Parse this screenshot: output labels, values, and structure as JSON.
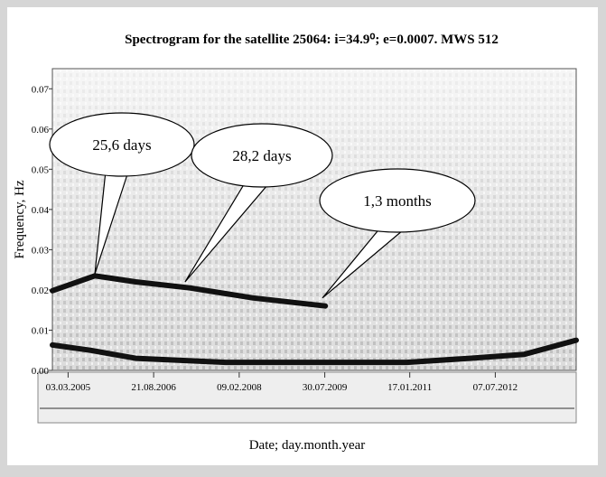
{
  "chart_data": {
    "type": "spectrogram",
    "title": "Spectrogram for the satellite 25064: i=34.9⁰; e=0.0007. MWS 512",
    "ylabel": "Frequency, Hz",
    "xlabel": "Date; day.month.year",
    "xlim": [
      2004.9,
      2013.9
    ],
    "xticks": [
      {
        "value": 2005.17,
        "label": "03.03.2005"
      },
      {
        "value": 2006.64,
        "label": "21.08.2006"
      },
      {
        "value": 2008.11,
        "label": "09.02.2008"
      },
      {
        "value": 2009.58,
        "label": "30.07.2009"
      },
      {
        "value": 2011.04,
        "label": "17.01.2011"
      },
      {
        "value": 2012.51,
        "label": "07.07.2012"
      }
    ],
    "ylim": [
      0,
      0.075
    ],
    "yticks": [
      {
        "value": 0,
        "label": "0.00"
      },
      0.01,
      0.02,
      0.03,
      0.04,
      0.05,
      0.06,
      0.07
    ],
    "ridges": [
      {
        "x": [
          2004.9,
          2005.63,
          2006.33,
          2007.26,
          2008.35,
          2009.59
        ],
        "values": [
          0.0198,
          0.0235,
          0.022,
          0.0205,
          0.018,
          0.016
        ]
      },
      {
        "x": [
          2004.9,
          2005.55,
          2006.33,
          2007.88,
          2009.43,
          2010.99,
          2012.07,
          2013.01,
          2013.9
        ],
        "values": [
          0.0063,
          0.005,
          0.003,
          0.002,
          0.002,
          0.002,
          0.003,
          0.004,
          0.0075
        ]
      }
    ],
    "annotations": [
      {
        "text": "25,6 days",
        "x": 2005.63,
        "y": 0.024
      },
      {
        "text": "28,2 days",
        "x": 2007.18,
        "y": 0.022
      },
      {
        "text": "1,3 months",
        "x": 2009.54,
        "y": 0.018
      }
    ]
  }
}
